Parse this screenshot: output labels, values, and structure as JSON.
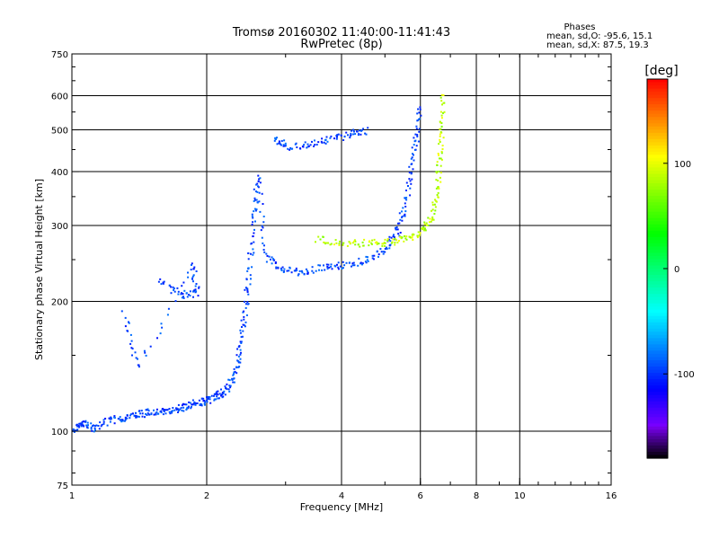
{
  "chart_data": {
    "type": "scatter",
    "title": "Tromsø 20160302 11:40:00-11:41:43",
    "subtitle": "RwPretec (8p)",
    "xlabel": "Frequency [MHz]",
    "ylabel": "Stationary phase Virtual Height [km]",
    "x_scale": "log",
    "y_scale": "log",
    "xlim": [
      1,
      16
    ],
    "ylim": [
      75,
      750
    ],
    "x_ticks": [
      1,
      2,
      4,
      6,
      8,
      10,
      16
    ],
    "y_ticks": [
      75,
      100,
      200,
      300,
      400,
      500,
      600,
      750
    ],
    "x_gridlines": [
      2,
      4,
      6,
      8,
      10
    ],
    "y_gridlines": [
      100,
      200,
      300,
      400,
      500,
      600
    ],
    "grid": true,
    "phase_stats": {
      "heading": "Phases",
      "line_o": "mean, sd,O: -95.6, 15.1",
      "line_x": "mean, sd,X:  87.5, 19.3"
    },
    "colorbar": {
      "label": "[deg]",
      "range": [
        -180,
        180
      ],
      "ticks": [
        "100",
        "0",
        "-100"
      ],
      "tick_values": [
        100,
        0,
        -100
      ],
      "colormap": "rainbow"
    },
    "traces": [
      {
        "mode": "O",
        "phase_mean": -95.6,
        "phase_sd": 15.1,
        "points": [
          [
            1.0,
            100
          ],
          [
            1.05,
            105
          ],
          [
            1.1,
            102
          ],
          [
            1.2,
            106
          ],
          [
            1.3,
            108
          ],
          [
            1.4,
            110
          ],
          [
            1.5,
            111
          ],
          [
            1.6,
            112
          ],
          [
            1.7,
            113
          ],
          [
            1.8,
            115
          ],
          [
            1.9,
            117
          ],
          [
            2.0,
            118
          ],
          [
            2.1,
            121
          ],
          [
            2.2,
            125
          ],
          [
            2.3,
            135
          ],
          [
            2.35,
            150
          ],
          [
            2.4,
            175
          ],
          [
            2.45,
            210
          ],
          [
            2.5,
            260
          ],
          [
            2.55,
            330
          ],
          [
            2.6,
            390
          ],
          [
            2.7,
            255
          ],
          [
            2.9,
            240
          ],
          [
            3.2,
            235
          ],
          [
            3.6,
            240
          ],
          [
            4.0,
            243
          ],
          [
            4.5,
            250
          ],
          [
            5.0,
            265
          ],
          [
            5.3,
            290
          ],
          [
            5.5,
            330
          ],
          [
            5.7,
            400
          ],
          [
            5.85,
            480
          ],
          [
            5.95,
            570
          ]
        ]
      },
      {
        "mode": "O upper",
        "phase_mean": -95.6,
        "phase_sd": 15.1,
        "points": [
          [
            2.8,
            480
          ],
          [
            3.0,
            460
          ],
          [
            3.4,
            462
          ],
          [
            3.8,
            478
          ],
          [
            4.2,
            493
          ],
          [
            4.5,
            500
          ]
        ]
      },
      {
        "mode": "X",
        "phase_mean": 87.5,
        "phase_sd": 19.3,
        "points": [
          [
            3.5,
            280
          ],
          [
            4.0,
            275
          ],
          [
            4.5,
            274
          ],
          [
            5.0,
            275
          ],
          [
            5.5,
            280
          ],
          [
            6.0,
            290
          ],
          [
            6.3,
            310
          ],
          [
            6.5,
            350
          ],
          [
            6.6,
            420
          ],
          [
            6.65,
            500
          ],
          [
            6.7,
            610
          ]
        ]
      },
      {
        "mode": "O sparse",
        "phase_mean": -95.6,
        "phase_sd": 15.1,
        "points": [
          [
            1.55,
            225
          ],
          [
            1.75,
            208
          ],
          [
            1.9,
            210
          ],
          [
            1.85,
            245
          ],
          [
            1.4,
            140
          ],
          [
            1.3,
            190
          ]
        ]
      }
    ]
  }
}
